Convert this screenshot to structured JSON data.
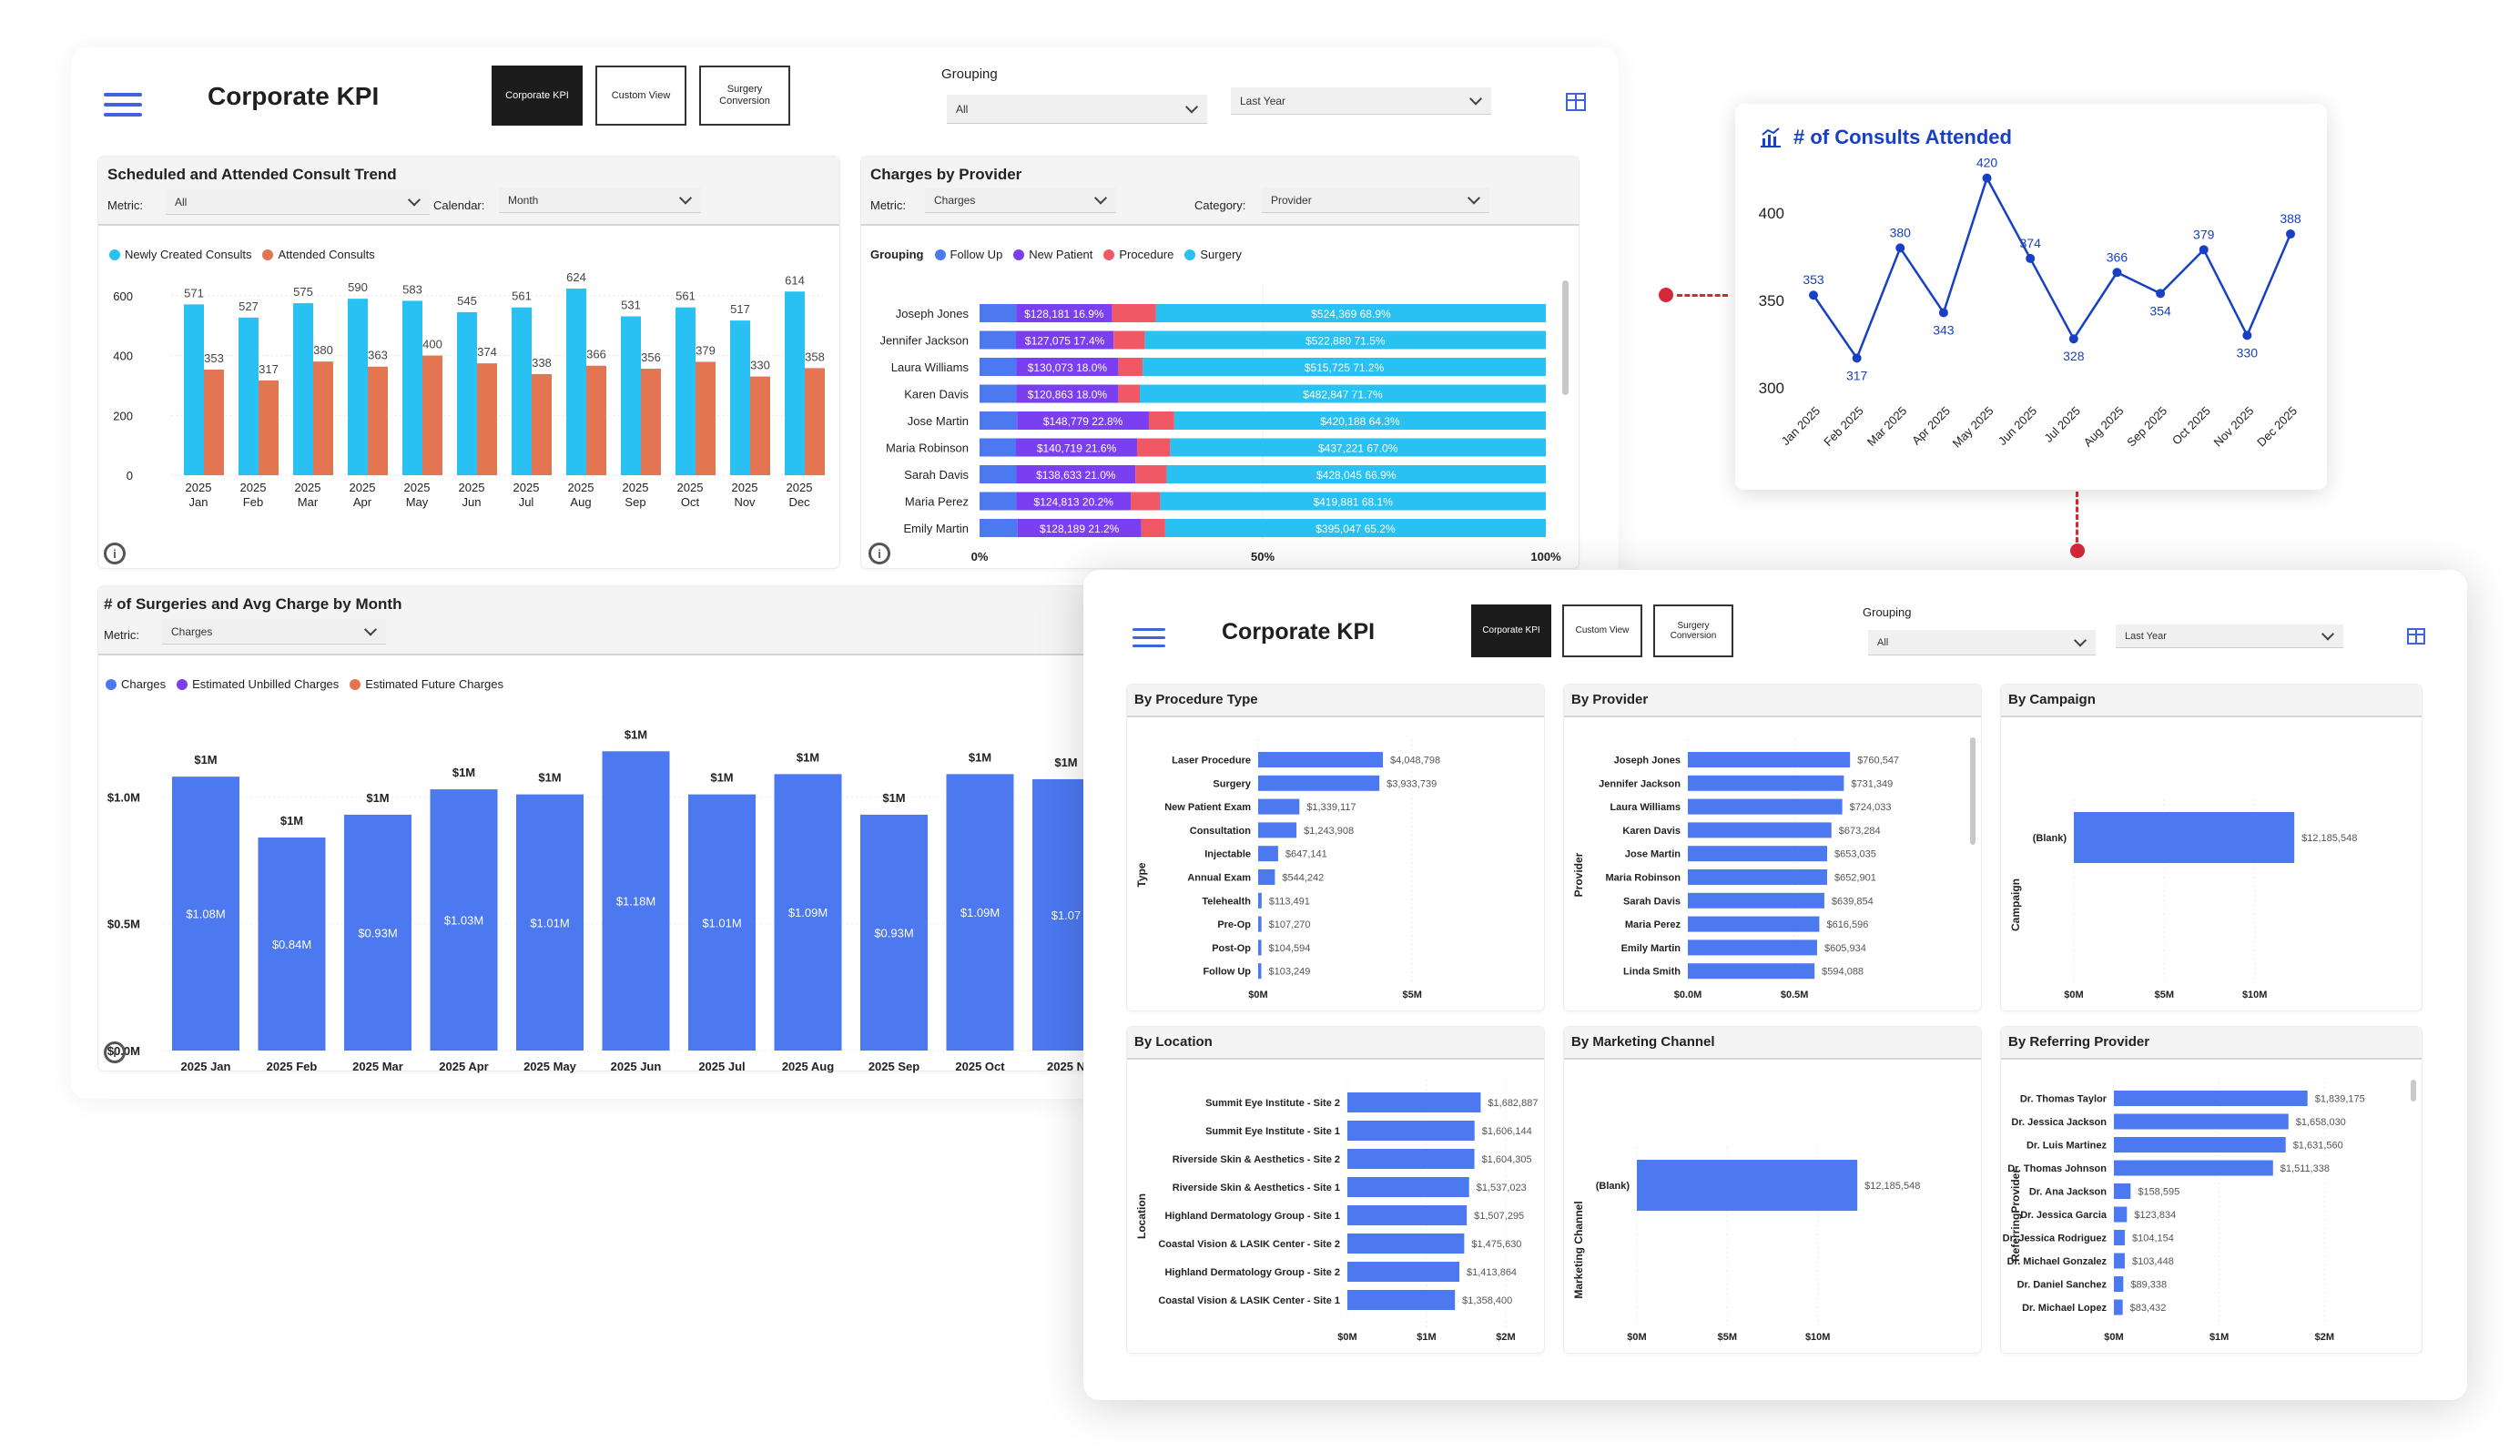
{
  "colors": {
    "cyan": "#29c0f2",
    "orange": "#e37552",
    "blue": "#4c78f0",
    "purple": "#7b3ff2",
    "red": "#f05866",
    "navy": "#1840c4",
    "connector": "#d6283a"
  },
  "top": {
    "title": "Corporate KPI",
    "tabs": [
      "Corporate KPI",
      "Custom View",
      "Surgery Conversion"
    ],
    "grouping_label": "Grouping",
    "grouping_value": "All",
    "period_value": "Last Year"
  },
  "consult_trend": {
    "title": "Scheduled and Attended Consult Trend",
    "metric_label": "Metric:",
    "metric_value": "All",
    "calendar_label": "Calendar:",
    "calendar_value": "Month",
    "legend": [
      "Newly Created Consults",
      "Attended Consults"
    ]
  },
  "charges_provider": {
    "title": "Charges by Provider",
    "metric_label": "Metric:",
    "metric_value": "Charges",
    "category_label": "Category:",
    "category_value": "Provider",
    "legend_label": "Grouping",
    "legend": [
      "Follow Up",
      "New Patient",
      "Procedure",
      "Surgery"
    ]
  },
  "surgeries": {
    "title": "# of Surgeries and Avg Charge by Month",
    "metric_label": "Metric:",
    "metric_value": "Charges",
    "legend": [
      "Charges",
      "Estimated Unbilled Charges",
      "Estimated Future Charges"
    ]
  },
  "consults_card": {
    "title": "# of Consults Attended"
  },
  "second": {
    "title": "Corporate KPI",
    "tabs": [
      "Corporate KPI",
      "Custom View",
      "Surgery Conversion"
    ],
    "grouping_label": "Grouping",
    "grouping_value": "All",
    "period_value": "Last Year",
    "panels": [
      "By Procedure Type",
      "By Provider",
      "By Campaign",
      "By Location",
      "By Marketing Channel",
      "By Referring Provider"
    ]
  },
  "chart_data": [
    {
      "type": "bar",
      "id": "consult_trend",
      "categories": [
        "2025 Jan",
        "2025 Feb",
        "2025 Mar",
        "2025 Apr",
        "2025 May",
        "2025 Jun",
        "2025 Jul",
        "2025 Aug",
        "2025 Sep",
        "2025 Oct",
        "2025 Nov",
        "2025 Dec"
      ],
      "series": [
        {
          "name": "Newly Created Consults",
          "values": [
            571,
            527,
            575,
            590,
            583,
            545,
            561,
            624,
            531,
            561,
            517,
            614
          ]
        },
        {
          "name": "Attended Consults",
          "values": [
            353,
            317,
            380,
            363,
            400,
            374,
            338,
            366,
            356,
            379,
            330,
            358
          ]
        }
      ],
      "ylim": [
        0,
        700
      ],
      "yticks": [
        0,
        200,
        400,
        600
      ]
    },
    {
      "type": "bar",
      "id": "charges_by_provider",
      "stacked": true,
      "orientation": "horizontal",
      "categories": [
        "Joseph Jones",
        "Jennifer Jackson",
        "Laura Williams",
        "Karen Davis",
        "Jose Martin",
        "Maria Robinson",
        "Sarah Davis",
        "Maria Perez",
        "Emily Martin"
      ],
      "series": [
        {
          "name": "Follow Up",
          "values": [
            6.5,
            6.5,
            6.5,
            6.5,
            6.5,
            6.5,
            6.5,
            6.5,
            6.5
          ]
        },
        {
          "name": "New Patient",
          "labels": [
            "$128,181 16.9%",
            "$127,075 17.4%",
            "$130,073 18.0%",
            "$120,863 18.0%",
            "$148,779 22.8%",
            "$140,719 21.6%",
            "$138,633 21.0%",
            "$124,813 20.2%",
            "$128,189 21.2%"
          ],
          "values": [
            16.9,
            17.4,
            18.0,
            18.0,
            22.8,
            21.6,
            21.0,
            20.2,
            21.2
          ]
        },
        {
          "name": "Procedure",
          "values": [
            7.8,
            5.6,
            4.3,
            3.8,
            4.4,
            5.9,
            5.5,
            5.2,
            4.1
          ]
        },
        {
          "name": "Surgery",
          "labels": [
            "$524,369 68.9%",
            "$522,880 71.5%",
            "$515,725 71.2%",
            "$482,847 71.7%",
            "$420,188 64.3%",
            "$437,221 67.0%",
            "$428,045 66.9%",
            "$419,881 68.1%",
            "$395,047 65.2%"
          ],
          "values": [
            68.9,
            71.5,
            71.2,
            71.7,
            64.3,
            67.0,
            66.9,
            68.1,
            65.2
          ]
        }
      ],
      "xticks": [
        "0%",
        "50%",
        "100%"
      ]
    },
    {
      "type": "bar",
      "id": "surgeries_by_month",
      "categories": [
        "2025 Jan",
        "2025 Feb",
        "2025 Mar",
        "2025 Apr",
        "2025 May",
        "2025 Jun",
        "2025 Jul",
        "2025 Aug",
        "2025 Sep",
        "2025 Oct",
        "2025 N"
      ],
      "series": [
        {
          "name": "Charges",
          "values": [
            1.08,
            0.84,
            0.93,
            1.03,
            1.01,
            1.18,
            1.01,
            1.09,
            0.93,
            1.09,
            1.07
          ],
          "labels": [
            "$1.08M",
            "$0.84M",
            "$0.93M",
            "$1.03M",
            "$1.01M",
            "$1.18M",
            "$1.01M",
            "$1.09M",
            "$0.93M",
            "$1.09M",
            "$1.07"
          ],
          "top_labels": [
            "$1M",
            "$1M",
            "$1M",
            "$1M",
            "$1M",
            "$1M",
            "$1M",
            "$1M",
            "$1M",
            "$1M",
            "$1M"
          ]
        }
      ],
      "ylim": [
        0,
        1.4
      ],
      "yticks": [
        "$0.0M",
        "$0.5M",
        "$1.0M"
      ]
    },
    {
      "type": "line",
      "id": "consults_attended",
      "categories": [
        "Jan 2025",
        "Feb 2025",
        "Mar 2025",
        "Apr 2025",
        "May 2025",
        "Jun 2025",
        "Jul 2025",
        "Aug 2025",
        "Sep 2025",
        "Oct 2025",
        "Nov 2025",
        "Dec 2025"
      ],
      "values": [
        353,
        317,
        380,
        343,
        420,
        374,
        328,
        366,
        354,
        379,
        330,
        388
      ],
      "ylim": [
        300,
        420
      ],
      "yticks": [
        300,
        350,
        400
      ]
    },
    {
      "type": "bar",
      "id": "by_procedure_type",
      "orientation": "horizontal",
      "ylabel": "Type",
      "categories": [
        "Laser Procedure",
        "Surgery",
        "New Patient Exam",
        "Consultation",
        "Injectable",
        "Annual Exam",
        "Telehealth",
        "Pre-Op",
        "Post-Op",
        "Follow Up"
      ],
      "values": [
        4048798,
        3933739,
        1339117,
        1243908,
        647141,
        544242,
        113491,
        107270,
        104594,
        103249
      ],
      "labels": [
        "$4,048,798",
        "$3,933,739",
        "$1,339,117",
        "$1,243,908",
        "$647,141",
        "$544,242",
        "$113,491",
        "$107,270",
        "$104,594",
        "$103,249"
      ],
      "xlim": [
        0,
        6500000
      ],
      "xticks": [
        "$0M",
        "$5M"
      ]
    },
    {
      "type": "bar",
      "id": "by_provider",
      "orientation": "horizontal",
      "ylabel": "Provider",
      "categories": [
        "Joseph Jones",
        "Jennifer Jackson",
        "Laura Williams",
        "Karen Davis",
        "Jose Martin",
        "Maria Robinson",
        "Sarah Davis",
        "Maria Perez",
        "Emily Martin",
        "Linda Smith"
      ],
      "values": [
        760547,
        731349,
        724033,
        673284,
        653035,
        652901,
        639854,
        616596,
        605934,
        594088
      ],
      "labels": [
        "$760,547",
        "$731,349",
        "$724,033",
        "$673,284",
        "$653,035",
        "$652,901",
        "$639,854",
        "$616,596",
        "$605,934",
        "$594,088"
      ],
      "xlim": [
        0,
        1050000
      ],
      "xticks": [
        "$0.0M",
        "$0.5M"
      ]
    },
    {
      "type": "bar",
      "id": "by_campaign",
      "orientation": "horizontal",
      "ylabel": "Campaign",
      "categories": [
        "(Blank)"
      ],
      "values": [
        12185548
      ],
      "labels": [
        "$12,185,548"
      ],
      "xlim": [
        0,
        15600000
      ],
      "xticks": [
        "$0M",
        "$5M",
        "$10M"
      ]
    },
    {
      "type": "bar",
      "id": "by_location",
      "orientation": "horizontal",
      "ylabel": "Location",
      "categories": [
        "Summit Eye Institute - Site 2",
        "Summit Eye Institute - Site 1",
        "Riverside Skin & Aesthetics - Site 2",
        "Riverside Skin & Aesthetics - Site 1",
        "Highland Dermatology Group - Site 1",
        "Coastal Vision & LASIK Center - Site 2",
        "Highland Dermatology Group - Site 2",
        "Coastal Vision & LASIK Center - Site 1"
      ],
      "values": [
        1682887,
        1606144,
        1604305,
        1537023,
        1507295,
        1475630,
        1413864,
        1358400
      ],
      "labels": [
        "$1,682,887",
        "$1,606,144",
        "$1,604,305",
        "$1,537,023",
        "$1,507,295",
        "$1,475,630",
        "$1,413,864",
        "$1,358,400"
      ],
      "xlim": [
        0,
        2000000
      ],
      "xticks": [
        "$0M",
        "$1M",
        "$2M"
      ]
    },
    {
      "type": "bar",
      "id": "by_marketing_channel",
      "orientation": "horizontal",
      "ylabel": "Marketing Channel",
      "categories": [
        "(Blank)"
      ],
      "values": [
        12185548
      ],
      "labels": [
        "$12,185,548"
      ],
      "xlim": [
        0,
        15600000
      ],
      "xticks": [
        "$0M",
        "$5M",
        "$10M"
      ]
    },
    {
      "type": "bar",
      "id": "by_referring_provider",
      "orientation": "horizontal",
      "ylabel": "ReferringProvider",
      "categories": [
        "Dr. Thomas Taylor",
        "Dr. Jessica Jackson",
        "Dr. Luis Martinez",
        "Dr. Thomas Johnson",
        "Dr. Ana Jackson",
        "Dr. Jessica Garcia",
        "Dr. Jessica Rodriguez",
        "Dr. Michael Gonzalez",
        "Dr. Daniel Sanchez",
        "Dr. Michael Lopez"
      ],
      "values": [
        1839175,
        1658030,
        1631560,
        1511338,
        158595,
        123834,
        104154,
        103448,
        89338,
        83432
      ],
      "labels": [
        "$1,839,175",
        "$1,658,030",
        "$1,631,560",
        "$1,511,338",
        "$158,595",
        "$123,834",
        "$104,154",
        "$103,448",
        "$89,338",
        "$83,432"
      ],
      "xlim": [
        0,
        2300000
      ],
      "xticks": [
        "$0M",
        "$1M",
        "$2M"
      ]
    }
  ]
}
